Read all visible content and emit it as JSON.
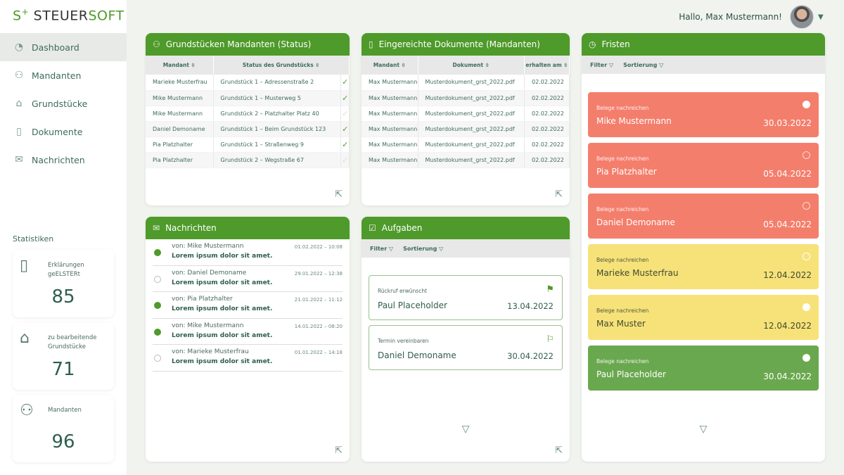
{
  "logo": {
    "prefix": "S",
    "plus": "+",
    "a": "STEUER",
    "b": "SOFT"
  },
  "nav": [
    {
      "label": "Dashboard",
      "icon": "dashboard-icon",
      "glyph": "◔",
      "active": true
    },
    {
      "label": "Mandanten",
      "icon": "users-icon",
      "glyph": "⚇"
    },
    {
      "label": "Grundstücke",
      "icon": "house-icon",
      "glyph": "⌂"
    },
    {
      "label": "Dokumente",
      "icon": "document-icon",
      "glyph": "▯"
    },
    {
      "label": "Nachrichten",
      "icon": "mail-icon",
      "glyph": "✉"
    }
  ],
  "stats": {
    "title": "Statistiken",
    "items": [
      {
        "label": "Erklärungen geELSTERt",
        "value": "85",
        "glyph": "▯",
        "icon": "document-icon"
      },
      {
        "label": "zu bearbeitende Grundstücke",
        "value": "71",
        "glyph": "⌂",
        "icon": "house-icon"
      },
      {
        "label": "Mandanten",
        "value": "96",
        "glyph": "⚇",
        "icon": "users-icon"
      }
    ]
  },
  "header": {
    "greeting": "Hallo, Max Mustermann!"
  },
  "grundstuecke": {
    "title": "Grundstücken Mandanten (Status)",
    "columns": [
      "Mandant ⇳",
      "Status des Grundstücks ⇳"
    ],
    "rows": [
      [
        "Marieke Musterfrau",
        "Grundstück 1 – Adressenstraße 2",
        true
      ],
      [
        "Mike Mustermann",
        "Grundstück 1 – Musterweg 5",
        true
      ],
      [
        "Mike Mustermann",
        "Grundstück 2 – Platzhalter Platz 40",
        false
      ],
      [
        "Daniel Demoname",
        "Grundstück 1 – Beim Grundstück 123",
        true
      ],
      [
        "Pia Platzhalter",
        "Grundstück 1 – Straßenweg 9",
        true
      ],
      [
        "Pia Platzhalter",
        "Grundstück 2 – Wegstraße 67",
        false
      ]
    ]
  },
  "dokumente": {
    "title": "Eingereichte Dokumente (Mandanten)",
    "columns": [
      "Mandant ⇳",
      "Dokument ⇳",
      "erhalten am ⇳"
    ],
    "rows": [
      [
        "Max Mustermann",
        "Musterdokument_grst_2022.pdf",
        "02.02.2022"
      ],
      [
        "Max Mustermann",
        "Musterdokument_grst_2022.pdf",
        "02.02.2022"
      ],
      [
        "Max Mustermann",
        "Musterdokument_grst_2022.pdf",
        "02.02.2022"
      ],
      [
        "Max Mustermann",
        "Musterdokument_grst_2022.pdf",
        "02.02.2022"
      ],
      [
        "Max Mustermann",
        "Musterdokument_grst_2022.pdf",
        "02.02.2022"
      ],
      [
        "Max Mustermann",
        "Musterdokument_grst_2022.pdf",
        "02.02.2022"
      ]
    ]
  },
  "nachrichten": {
    "title": "Nachrichten",
    "items": [
      {
        "from": "von: Mike Mustermann",
        "text": "Lorem ipsum dolor sit amet.",
        "time": "01.02.2022 – 10:08",
        "unread": true
      },
      {
        "from": "von: Daniel Demoname",
        "text": "Lorem ipsum dolor sit amet.",
        "time": "29.01.2022 – 12:38",
        "unread": false
      },
      {
        "from": "von: Pia Platzhalter",
        "text": "Lorem ipsum dolor sit amet.",
        "time": "21.01.2022 – 11:12",
        "unread": true
      },
      {
        "from": "von: Mike Mustermann",
        "text": "Lorem ipsum dolor sit amet.",
        "time": "14.01.2022 – 08:20",
        "unread": true
      },
      {
        "from": "von: Marieke Musterfrau",
        "text": "Lorem ipsum dolor sit amet.",
        "time": "01.01.2022 – 14:18",
        "unread": false
      }
    ]
  },
  "aufgaben": {
    "title": "Aufgaben",
    "filter": "Filter ▽",
    "sort": "Sortierung ▽",
    "items": [
      {
        "subject": "Rückruf erwünscht",
        "name": "Paul Placeholder",
        "date": "13.04.2022",
        "flagged": true
      },
      {
        "subject": "Termin vereinbaren",
        "name": "Daniel Demoname",
        "date": "30.04.2022",
        "flagged": false
      }
    ]
  },
  "fristen": {
    "title": "Fristen",
    "filter": "Filter ▽",
    "sort": "Sortierung ▽",
    "colors": {
      "red": "#f47e6c",
      "yellow": "#f7e27a",
      "green": "#6aa84f"
    },
    "items": [
      {
        "subject": "Belege nachreichen",
        "name": "Mike Mustermann",
        "date": "30.03.2022",
        "status": "red",
        "done": true
      },
      {
        "subject": "Belege nachreichen",
        "name": "Pia Platzhalter",
        "date": "05.04.2022",
        "status": "red",
        "done": false
      },
      {
        "subject": "Belege nachreichen",
        "name": "Daniel Demoname",
        "date": "05.04.2022",
        "status": "red",
        "done": false
      },
      {
        "subject": "Belege nachreichen",
        "name": "Marieke Musterfrau",
        "date": "12.04.2022",
        "status": "yellow",
        "done": false
      },
      {
        "subject": "Belege nachreichen",
        "name": "Max Muster",
        "date": "12.04.2022",
        "status": "yellow",
        "done": true
      },
      {
        "subject": "Belege nachreichen",
        "name": "Paul Placeholder",
        "date": "30.04.2022",
        "status": "green",
        "done": true
      }
    ]
  }
}
